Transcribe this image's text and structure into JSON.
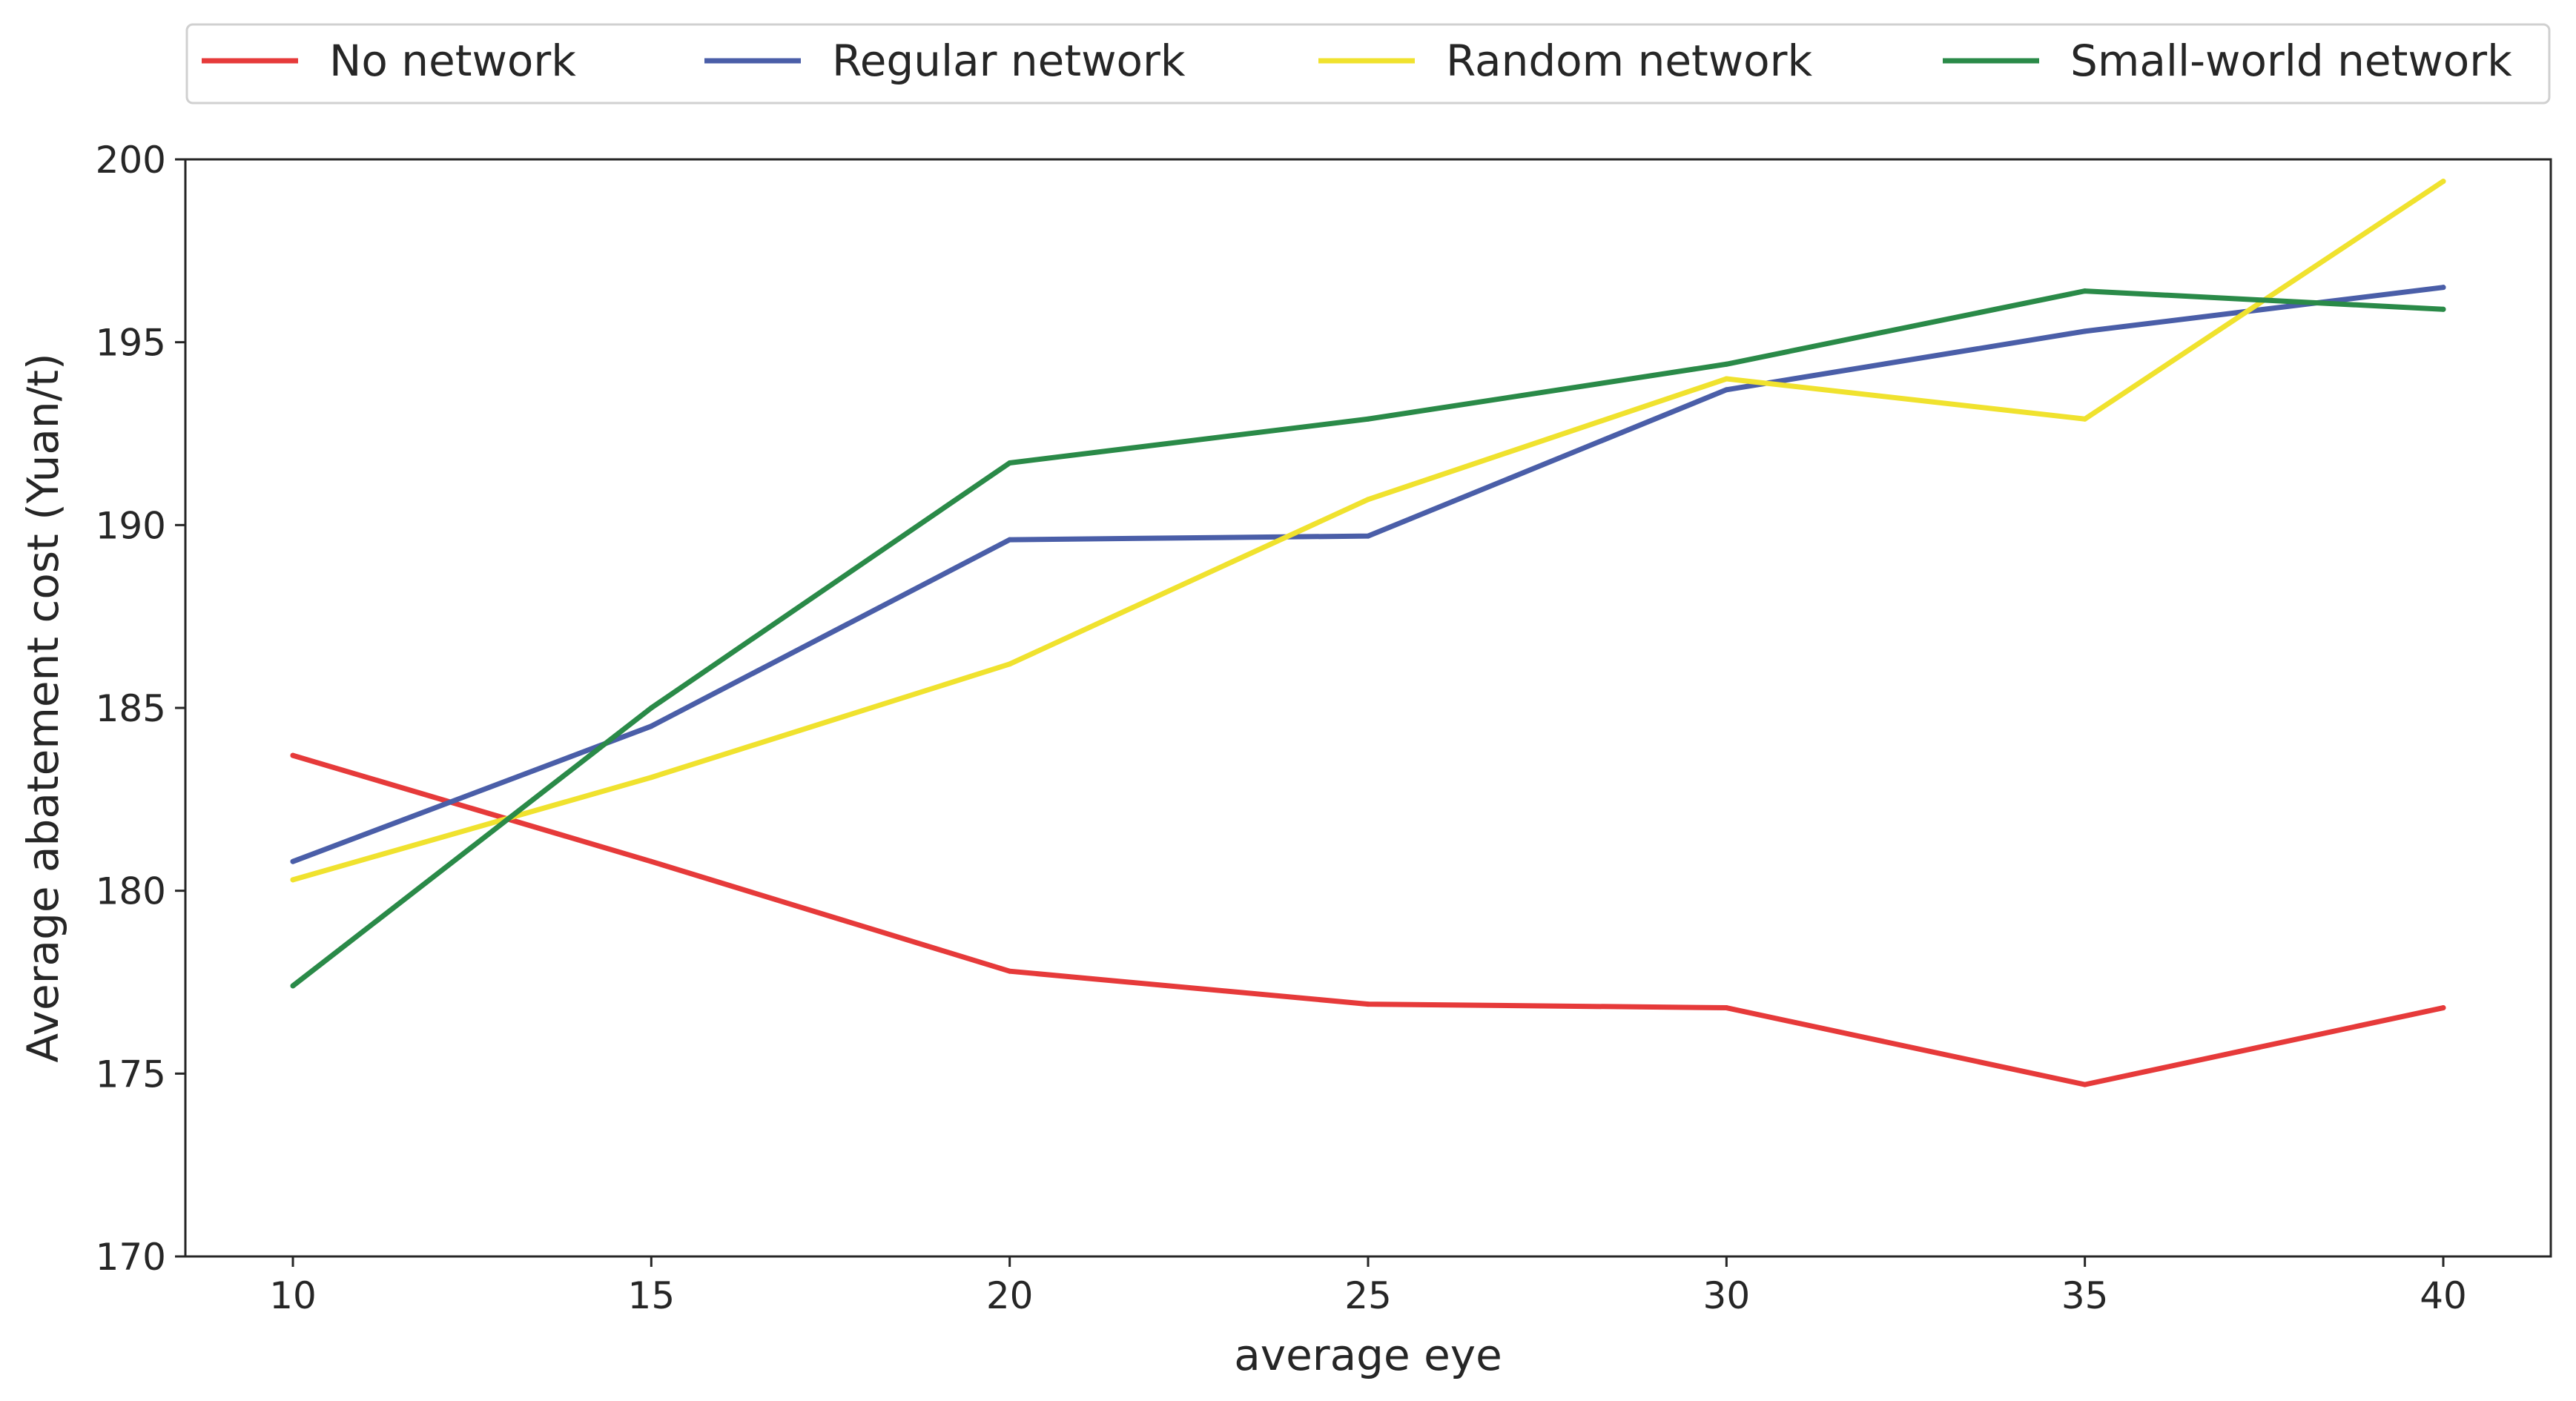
{
  "chart_data": {
    "type": "line",
    "title": "",
    "xlabel": "average eye",
    "ylabel": "Average abatement cost (Yuan/t)",
    "x": [
      10,
      15,
      20,
      25,
      30,
      35,
      40
    ],
    "xlim": [
      8.5,
      41.5
    ],
    "ylim": [
      170,
      200
    ],
    "xticks": [
      10,
      15,
      20,
      25,
      30,
      35,
      40
    ],
    "yticks": [
      170,
      175,
      180,
      185,
      190,
      195,
      200
    ],
    "grid": false,
    "legend_position": "top, above plot, single row",
    "series": [
      {
        "name": "No network",
        "color": "#e63a3a",
        "values": [
          183.7,
          180.8,
          177.8,
          176.9,
          176.8,
          174.7,
          176.8
        ]
      },
      {
        "name": "Regular network",
        "color": "#4a5ea8",
        "values": [
          180.8,
          184.5,
          189.6,
          189.7,
          193.7,
          195.3,
          196.5
        ]
      },
      {
        "name": "Random network",
        "color": "#f0e22e",
        "values": [
          180.3,
          183.1,
          186.2,
          190.7,
          194.0,
          192.9,
          199.4
        ]
      },
      {
        "name": "Small-world network",
        "color": "#2a8a48",
        "values": [
          177.4,
          185.0,
          191.7,
          192.9,
          194.4,
          196.4,
          195.9
        ]
      }
    ]
  }
}
